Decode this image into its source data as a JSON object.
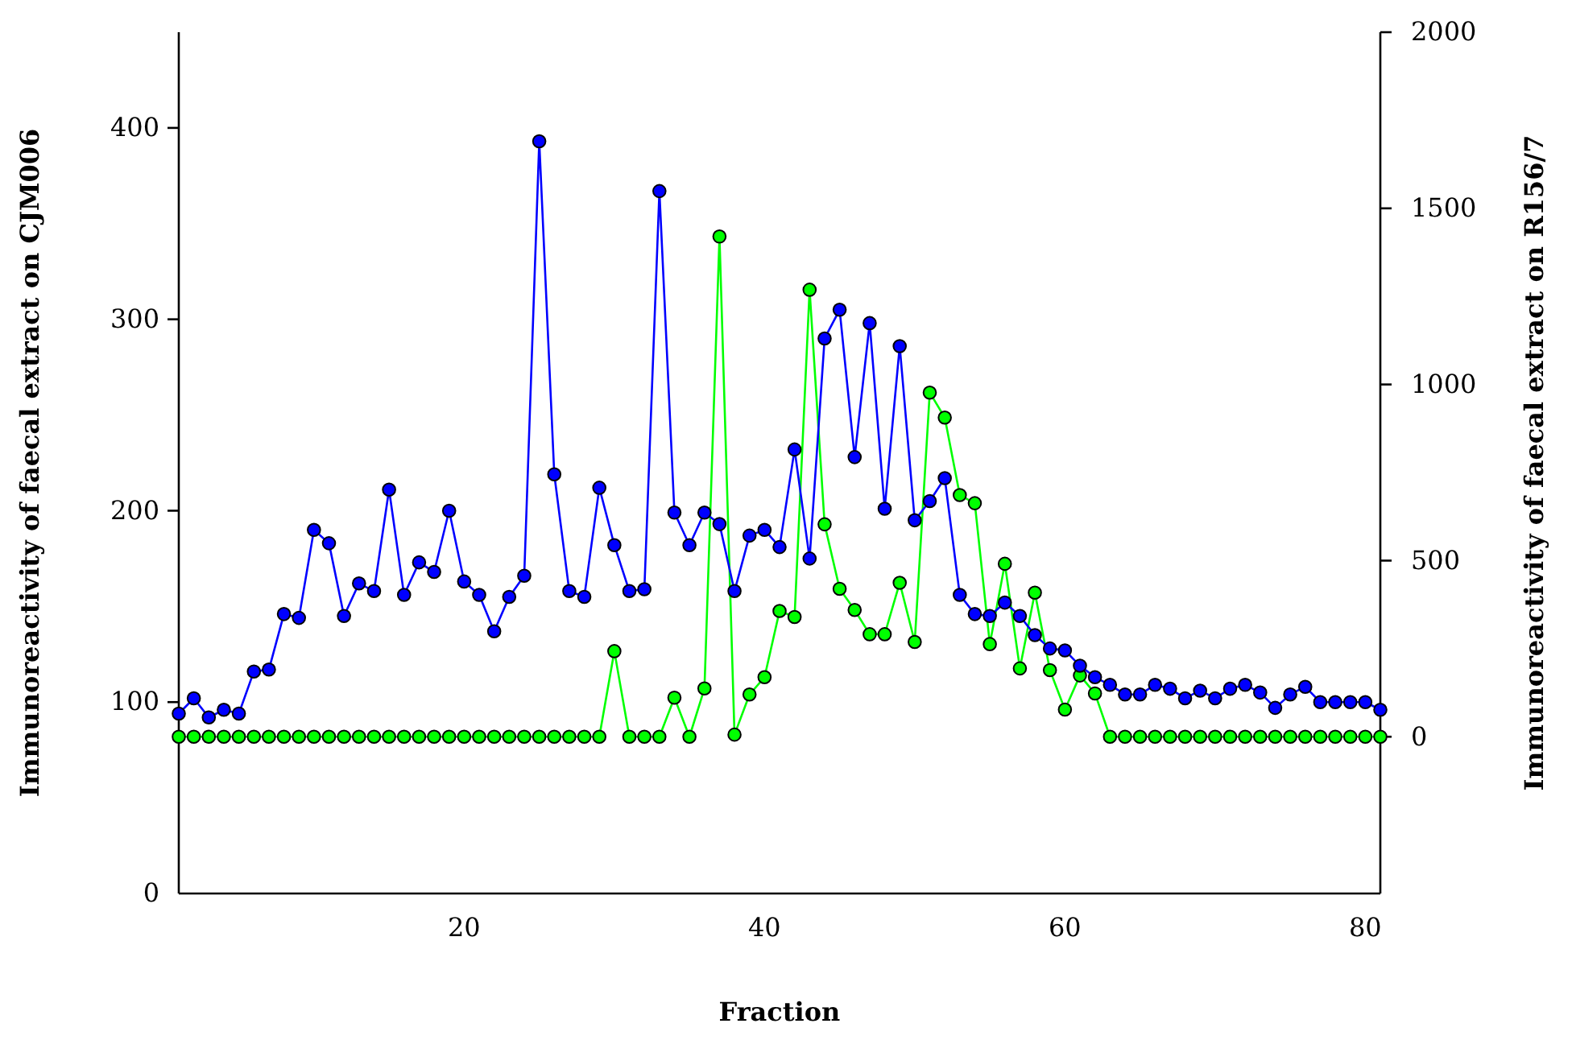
{
  "chart_data": {
    "type": "line",
    "xlabel": "Fraction",
    "ylabel": "Immunoreactivity of faecal extract on CJM006",
    "y2label": "Immunoreactivity of faecal extract on R156/7",
    "x": [
      1,
      2,
      3,
      4,
      5,
      6,
      7,
      8,
      9,
      10,
      11,
      12,
      13,
      14,
      15,
      16,
      17,
      18,
      19,
      20,
      21,
      22,
      23,
      24,
      25,
      26,
      27,
      28,
      29,
      30,
      31,
      32,
      33,
      34,
      35,
      36,
      37,
      38,
      39,
      40,
      41,
      42,
      43,
      44,
      45,
      46,
      47,
      48,
      49,
      50,
      51,
      52,
      53,
      54,
      55,
      56,
      57,
      58,
      59,
      60,
      61,
      62,
      63,
      64,
      65,
      66,
      67,
      68,
      69,
      70,
      71,
      72,
      73,
      74,
      75,
      76,
      77,
      78,
      79,
      80,
      81
    ],
    "series": [
      {
        "color": "#00ff00",
        "axis": "y2",
        "values": [
          0,
          0,
          0,
          0,
          0,
          0,
          0,
          0,
          0,
          0,
          0,
          0,
          0,
          0,
          0,
          0,
          0,
          0,
          0,
          0,
          0,
          0,
          0,
          0,
          0,
          0,
          0,
          0,
          0,
          243,
          0,
          0,
          0,
          111,
          0,
          137,
          1420,
          6,
          120,
          169,
          357,
          340,
          1269,
          603,
          420,
          360,
          291,
          291,
          437,
          269,
          977,
          906,
          686,
          663,
          263,
          491,
          194,
          409,
          189,
          77,
          174,
          123,
          0,
          0,
          0,
          0,
          0,
          0,
          0,
          0,
          0,
          0,
          0,
          0,
          0,
          0,
          0,
          0,
          0,
          0,
          0
        ]
      },
      {
        "color": "#0000ff",
        "values": [
          94,
          102,
          92,
          96,
          94,
          116,
          117,
          146,
          144,
          190,
          183,
          145,
          162,
          158,
          211,
          156,
          173,
          168,
          200,
          163,
          156,
          137,
          155,
          166,
          393,
          219,
          158,
          155,
          212,
          182,
          158,
          159,
          367,
          199,
          182,
          199,
          193,
          158,
          187,
          190,
          181,
          232,
          175,
          290,
          305,
          228,
          298,
          201,
          286,
          195,
          205,
          217,
          156,
          146,
          145,
          152,
          145,
          135,
          128,
          127,
          119,
          113,
          109,
          104,
          104,
          109,
          107,
          102,
          106,
          102,
          107,
          109,
          105,
          97,
          104,
          108,
          100,
          100,
          100,
          100,
          96
        ]
      }
    ],
    "xlim": [
      1,
      81
    ],
    "xticks": [
      20,
      40,
      60,
      80
    ],
    "ylim": [
      0,
      450
    ],
    "yticks": [
      0,
      100,
      200,
      300,
      400
    ],
    "y2lim": [
      -445,
      2000
    ],
    "y2ticks": [
      0,
      500,
      1000,
      1500,
      2000
    ],
    "marker": "circle",
    "line_style": "solid",
    "grid": false,
    "legend": false
  }
}
